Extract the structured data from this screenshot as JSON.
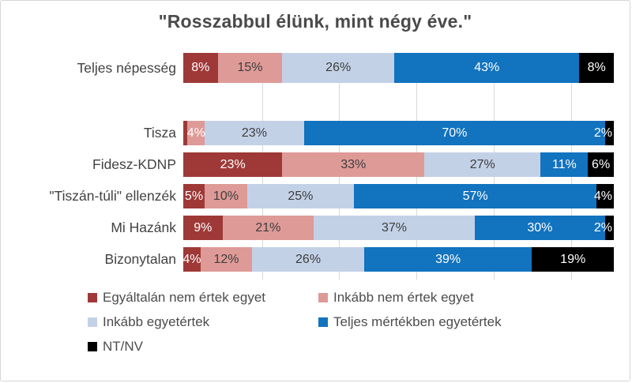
{
  "chart_data": {
    "type": "bar",
    "variant": "horizontal-stacked-100",
    "title": "\"Rosszabbul élünk, mint négy éve.\"",
    "xlim": [
      0,
      100
    ],
    "grid": "vertical-light",
    "legend_position": "bottom",
    "categories": [
      "Teljes népesség",
      "Tisza",
      "Fidesz-KDNP",
      "\"Tiszán-túli\" ellenzék",
      "Mi Hazánk",
      "Bizonytalan"
    ],
    "series": [
      {
        "name": "Egyáltalán nem értek egyet",
        "color": "#9e3937",
        "values": [
          8,
          1,
          23,
          5,
          9,
          4
        ]
      },
      {
        "name": "Inkább nem értek egyet",
        "color": "#de9a97",
        "values": [
          15,
          4,
          33,
          10,
          21,
          12
        ]
      },
      {
        "name": "Inkább egyetértek",
        "color": "#c3d1e7",
        "values": [
          26,
          23,
          27,
          25,
          37,
          26
        ]
      },
      {
        "name": "Teljes mértékben egyetértek",
        "color": "#1273bf",
        "values": [
          43,
          70,
          11,
          57,
          30,
          39
        ]
      },
      {
        "name": "NT/NV",
        "color": "#000000",
        "values": [
          8,
          2,
          6,
          4,
          2,
          19
        ]
      }
    ],
    "display_labels": [
      [
        "8%",
        "15%",
        "26%",
        "43%",
        "8%"
      ],
      [
        "",
        "4%",
        "23%",
        "70%",
        "2%"
      ],
      [
        "23%",
        "33%",
        "27%",
        "11%",
        "6%"
      ],
      [
        "5%",
        "10%",
        "25%",
        "57%",
        "4%"
      ],
      [
        "9%",
        "21%",
        "37%",
        "30%",
        "2%"
      ],
      [
        "4%",
        "12%",
        "26%",
        "39%",
        "19%"
      ]
    ],
    "label_styles": [
      [
        "light",
        "dark",
        "dark",
        "light",
        "light"
      ],
      [
        "light",
        "light",
        "dark",
        "light",
        "light"
      ],
      [
        "light",
        "dark",
        "dark",
        "light",
        "light"
      ],
      [
        "light",
        "dark",
        "dark",
        "light",
        "light"
      ],
      [
        "light",
        "dark",
        "dark",
        "light",
        "light"
      ],
      [
        "light",
        "dark",
        "dark",
        "light",
        "light"
      ]
    ],
    "label_colors": {
      "light": "#ffffff",
      "dark": "#3d3d3d"
    }
  }
}
